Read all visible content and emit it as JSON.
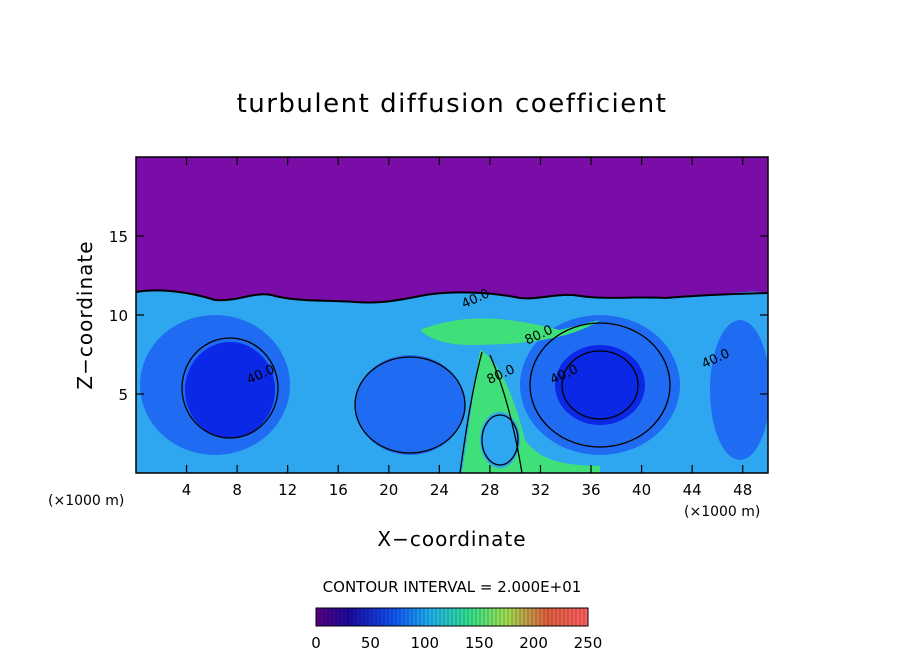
{
  "chart_data": {
    "type": "heatmap",
    "title": "turbulent diffusion coefficient",
    "xlabel": "X−coordinate",
    "ylabel": "Z−coordinate",
    "x_unit_left": "(×1000 m)",
    "x_unit_right": "(×1000 m)",
    "xlim": [
      0,
      50
    ],
    "ylim": [
      0,
      20
    ],
    "x_ticks": [
      4,
      8,
      12,
      16,
      20,
      24,
      28,
      32,
      36,
      40,
      44,
      48
    ],
    "y_ticks": [
      5,
      10,
      15
    ],
    "contour_interval_label": "CONTOUR INTERVAL = 2.000E+01",
    "contour_labels": [
      {
        "text": "40.0",
        "x": 10,
        "y": 6
      },
      {
        "text": "40.0",
        "x": 27,
        "y": 10.8
      },
      {
        "text": "80.0",
        "x": 32,
        "y": 8.5
      },
      {
        "text": "80.0",
        "x": 29,
        "y": 6
      },
      {
        "text": "40.0",
        "x": 34,
        "y": 6
      },
      {
        "text": "40.0",
        "x": 46,
        "y": 7
      }
    ],
    "colorbar": {
      "min": 0,
      "max": 250,
      "tick_labels": [
        "0",
        "50",
        "100",
        "150",
        "200",
        "250"
      ]
    },
    "colors": {
      "upper_region": "#7a0ca8",
      "deep_blue": "#0a28e6",
      "blue": "#1f6cf2",
      "light_blue": "#2fa6f0",
      "green": "#3fe07a"
    }
  }
}
